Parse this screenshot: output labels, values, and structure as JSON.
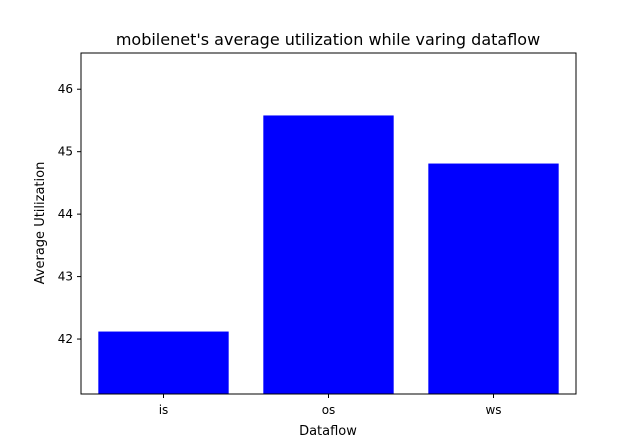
{
  "chart_data": {
    "type": "bar",
    "title": "mobilenet's average utilization while varing dataflow",
    "xlabel": "Dataflow",
    "ylabel": "Average Utilization",
    "categories": [
      "is",
      "os",
      "ws"
    ],
    "values": [
      42.12,
      45.58,
      44.81
    ],
    "ylim": [
      41.12,
      46.58
    ],
    "yticks": [
      42,
      43,
      44,
      45,
      46
    ],
    "bar_color": "#0000ff",
    "grid": false,
    "legend": "none"
  }
}
